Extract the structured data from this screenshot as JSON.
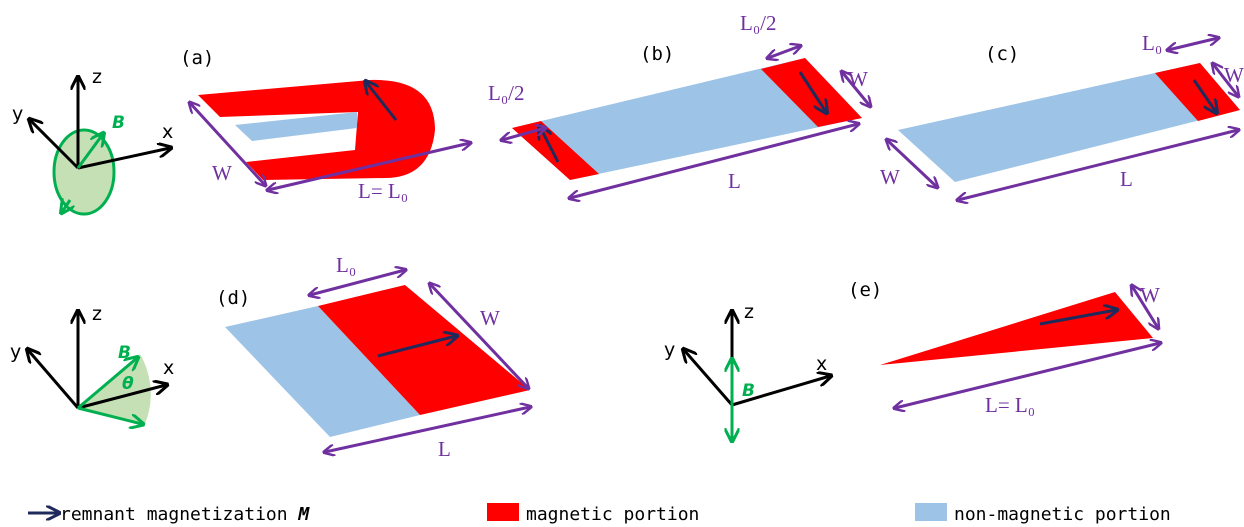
{
  "axes": [
    {
      "x": "x",
      "y": "y",
      "z": "z",
      "field": "B"
    },
    {
      "x": "x",
      "y": "y",
      "z": "z",
      "field": "B",
      "angle": "θ"
    },
    {
      "x": "x",
      "y": "y",
      "z": "z",
      "field": "B"
    }
  ],
  "panels": [
    {
      "label": "(a)",
      "dims": [
        "W",
        "L= L₀"
      ]
    },
    {
      "label": "(b)",
      "dims": [
        "L₀/2",
        "L₀/2",
        "W",
        "L"
      ]
    },
    {
      "label": "(c)",
      "dims": [
        "L₀",
        "W",
        "W",
        "L"
      ]
    },
    {
      "label": "(d)",
      "dims": [
        "L₀",
        "W",
        "L"
      ]
    },
    {
      "label": "(e)",
      "dims": [
        "W",
        "L= L₀"
      ]
    }
  ],
  "legend": [
    {
      "text": "remnant magnetization ",
      "symbol": "M"
    },
    {
      "text": "magnetic portion"
    },
    {
      "text": "non-magnetic portion"
    }
  ]
}
